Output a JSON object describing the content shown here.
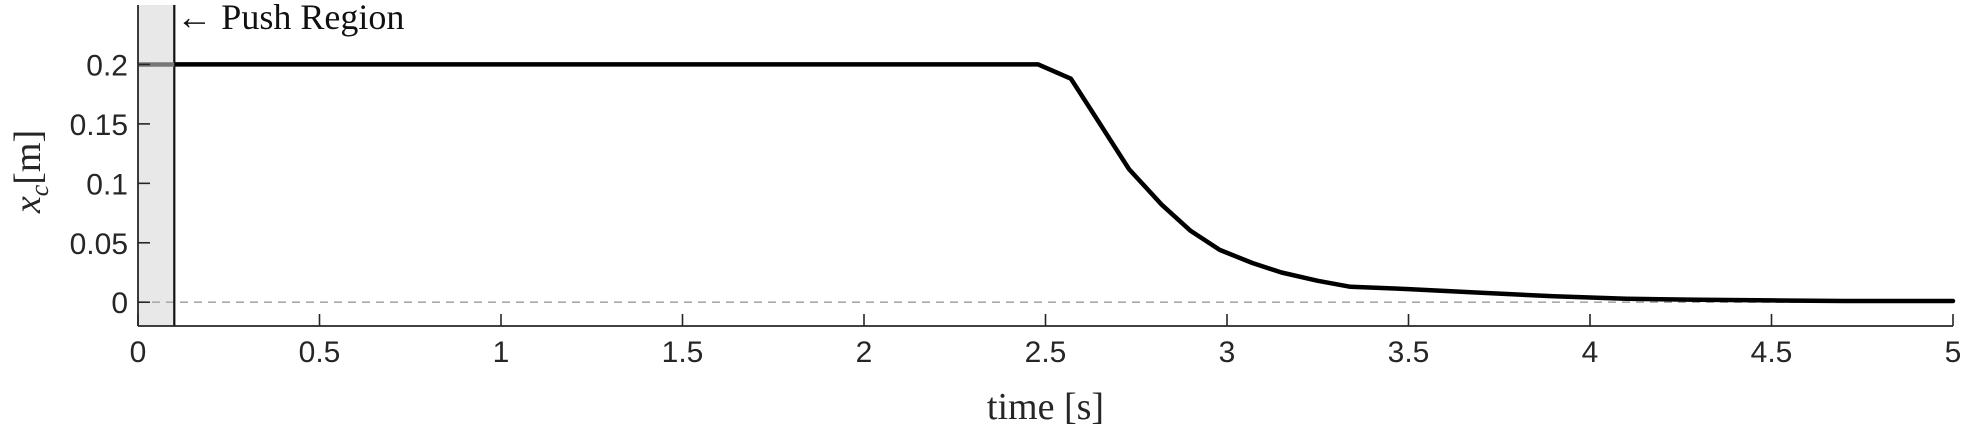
{
  "chart_data": {
    "type": "line",
    "xlabel": "time [s]",
    "ylabel": "x_c[m]",
    "ylabel_parts": {
      "symbol": "x",
      "subscript": "c",
      "unit": "[m]"
    },
    "xlim": [
      0,
      5
    ],
    "ylim": [
      -0.02,
      0.25
    ],
    "xticks": [
      0,
      0.5,
      1,
      1.5,
      2,
      2.5,
      3,
      3.5,
      4,
      4.5,
      5
    ],
    "xtick_labels": [
      "0",
      "0.5",
      "1",
      "1.5",
      "2",
      "2.5",
      "3",
      "3.5",
      "4",
      "4.5",
      "5"
    ],
    "yticks": [
      0,
      0.05,
      0.1,
      0.15,
      0.2
    ],
    "ytick_labels": [
      "0",
      "0.05",
      "0.1",
      "0.15",
      "0.2"
    ],
    "grid": false,
    "annotations": [
      {
        "text": "← Push Region",
        "x": 0.1,
        "y": 0.24
      }
    ],
    "shaded_region": {
      "label": "Push Region",
      "x": [
        0,
        0.1
      ],
      "color": "#e8e8e8"
    },
    "vertical_line": {
      "x": 0.1
    },
    "reference_line": {
      "y": 0,
      "style": "dashed",
      "color": "#aaaaaa"
    },
    "series": [
      {
        "color": "#000000",
        "x": [
          0.1,
          0.5,
          1.0,
          1.5,
          2.0,
          2.4,
          2.48,
          2.57,
          2.65,
          2.73,
          2.82,
          2.9,
          2.98,
          3.07,
          3.15,
          3.25,
          3.34,
          3.5,
          3.7,
          3.9,
          4.1,
          4.3,
          4.5,
          4.7,
          5.0
        ],
        "y": [
          0.2,
          0.2,
          0.2,
          0.2,
          0.2,
          0.2,
          0.2,
          0.188,
          0.15,
          0.112,
          0.082,
          0.06,
          0.044,
          0.033,
          0.025,
          0.018,
          0.013,
          0.011,
          0.008,
          0.005,
          0.003,
          0.002,
          0.0015,
          0.001,
          0.001
        ]
      }
    ]
  }
}
